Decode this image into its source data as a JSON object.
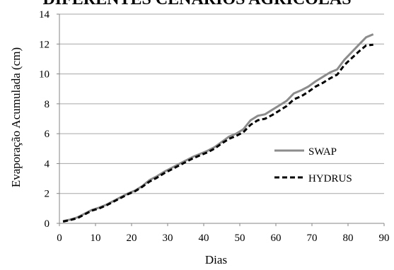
{
  "chart_data": {
    "type": "line",
    "title": "DIFERENTES CENÁRIOS AGRÍCOLAS",
    "xlabel": "Dias",
    "ylabel": "Evaporação Acumulada (cm)",
    "xlim": [
      0,
      90
    ],
    "ylim": [
      0,
      14
    ],
    "xticks": [
      "0",
      "10",
      "20",
      "30",
      "40",
      "50",
      "60",
      "70",
      "80",
      "90"
    ],
    "yticks": [
      "0",
      "2",
      "4",
      "6",
      "8",
      "10",
      "12",
      "14"
    ],
    "grid": "horizontal",
    "legend_position": "right",
    "series": [
      {
        "name": "SWAP",
        "color": "#8c8c8c",
        "dash": "solid",
        "x": [
          1,
          3,
          5,
          7,
          9,
          11,
          13,
          15,
          17,
          19,
          21,
          23,
          25,
          27,
          29,
          31,
          33,
          35,
          37,
          39,
          41,
          43,
          45,
          47,
          49,
          51,
          53,
          55,
          57,
          59,
          61,
          63,
          65,
          67,
          69,
          71,
          73,
          75,
          77,
          79,
          81,
          83,
          85,
          87
        ],
        "y": [
          0.15,
          0.25,
          0.4,
          0.65,
          0.9,
          1.05,
          1.25,
          1.5,
          1.75,
          2.0,
          2.2,
          2.5,
          2.9,
          3.15,
          3.45,
          3.7,
          3.95,
          4.2,
          4.45,
          4.65,
          4.85,
          5.1,
          5.45,
          5.8,
          6.0,
          6.3,
          6.9,
          7.2,
          7.3,
          7.6,
          7.9,
          8.2,
          8.7,
          8.9,
          9.15,
          9.5,
          9.8,
          10.1,
          10.3,
          10.95,
          11.45,
          11.95,
          12.45,
          12.65
        ]
      },
      {
        "name": "HYDRUS",
        "color": "#000000",
        "dash": "dashed",
        "x": [
          1,
          3,
          5,
          7,
          9,
          11,
          13,
          15,
          17,
          19,
          21,
          23,
          25,
          27,
          29,
          31,
          33,
          35,
          37,
          39,
          41,
          43,
          45,
          47,
          49,
          51,
          53,
          55,
          57,
          59,
          61,
          63,
          65,
          67,
          69,
          71,
          73,
          75,
          77,
          79,
          81,
          83,
          85,
          87
        ],
        "y": [
          0.12,
          0.22,
          0.35,
          0.6,
          0.85,
          1.0,
          1.2,
          1.45,
          1.7,
          1.95,
          2.15,
          2.45,
          2.8,
          3.05,
          3.35,
          3.6,
          3.85,
          4.1,
          4.35,
          4.55,
          4.75,
          5.0,
          5.35,
          5.65,
          5.85,
          6.1,
          6.6,
          6.9,
          7.0,
          7.25,
          7.55,
          7.85,
          8.3,
          8.5,
          8.8,
          9.15,
          9.4,
          9.7,
          9.95,
          10.6,
          11.05,
          11.5,
          11.9,
          11.95
        ]
      }
    ]
  }
}
